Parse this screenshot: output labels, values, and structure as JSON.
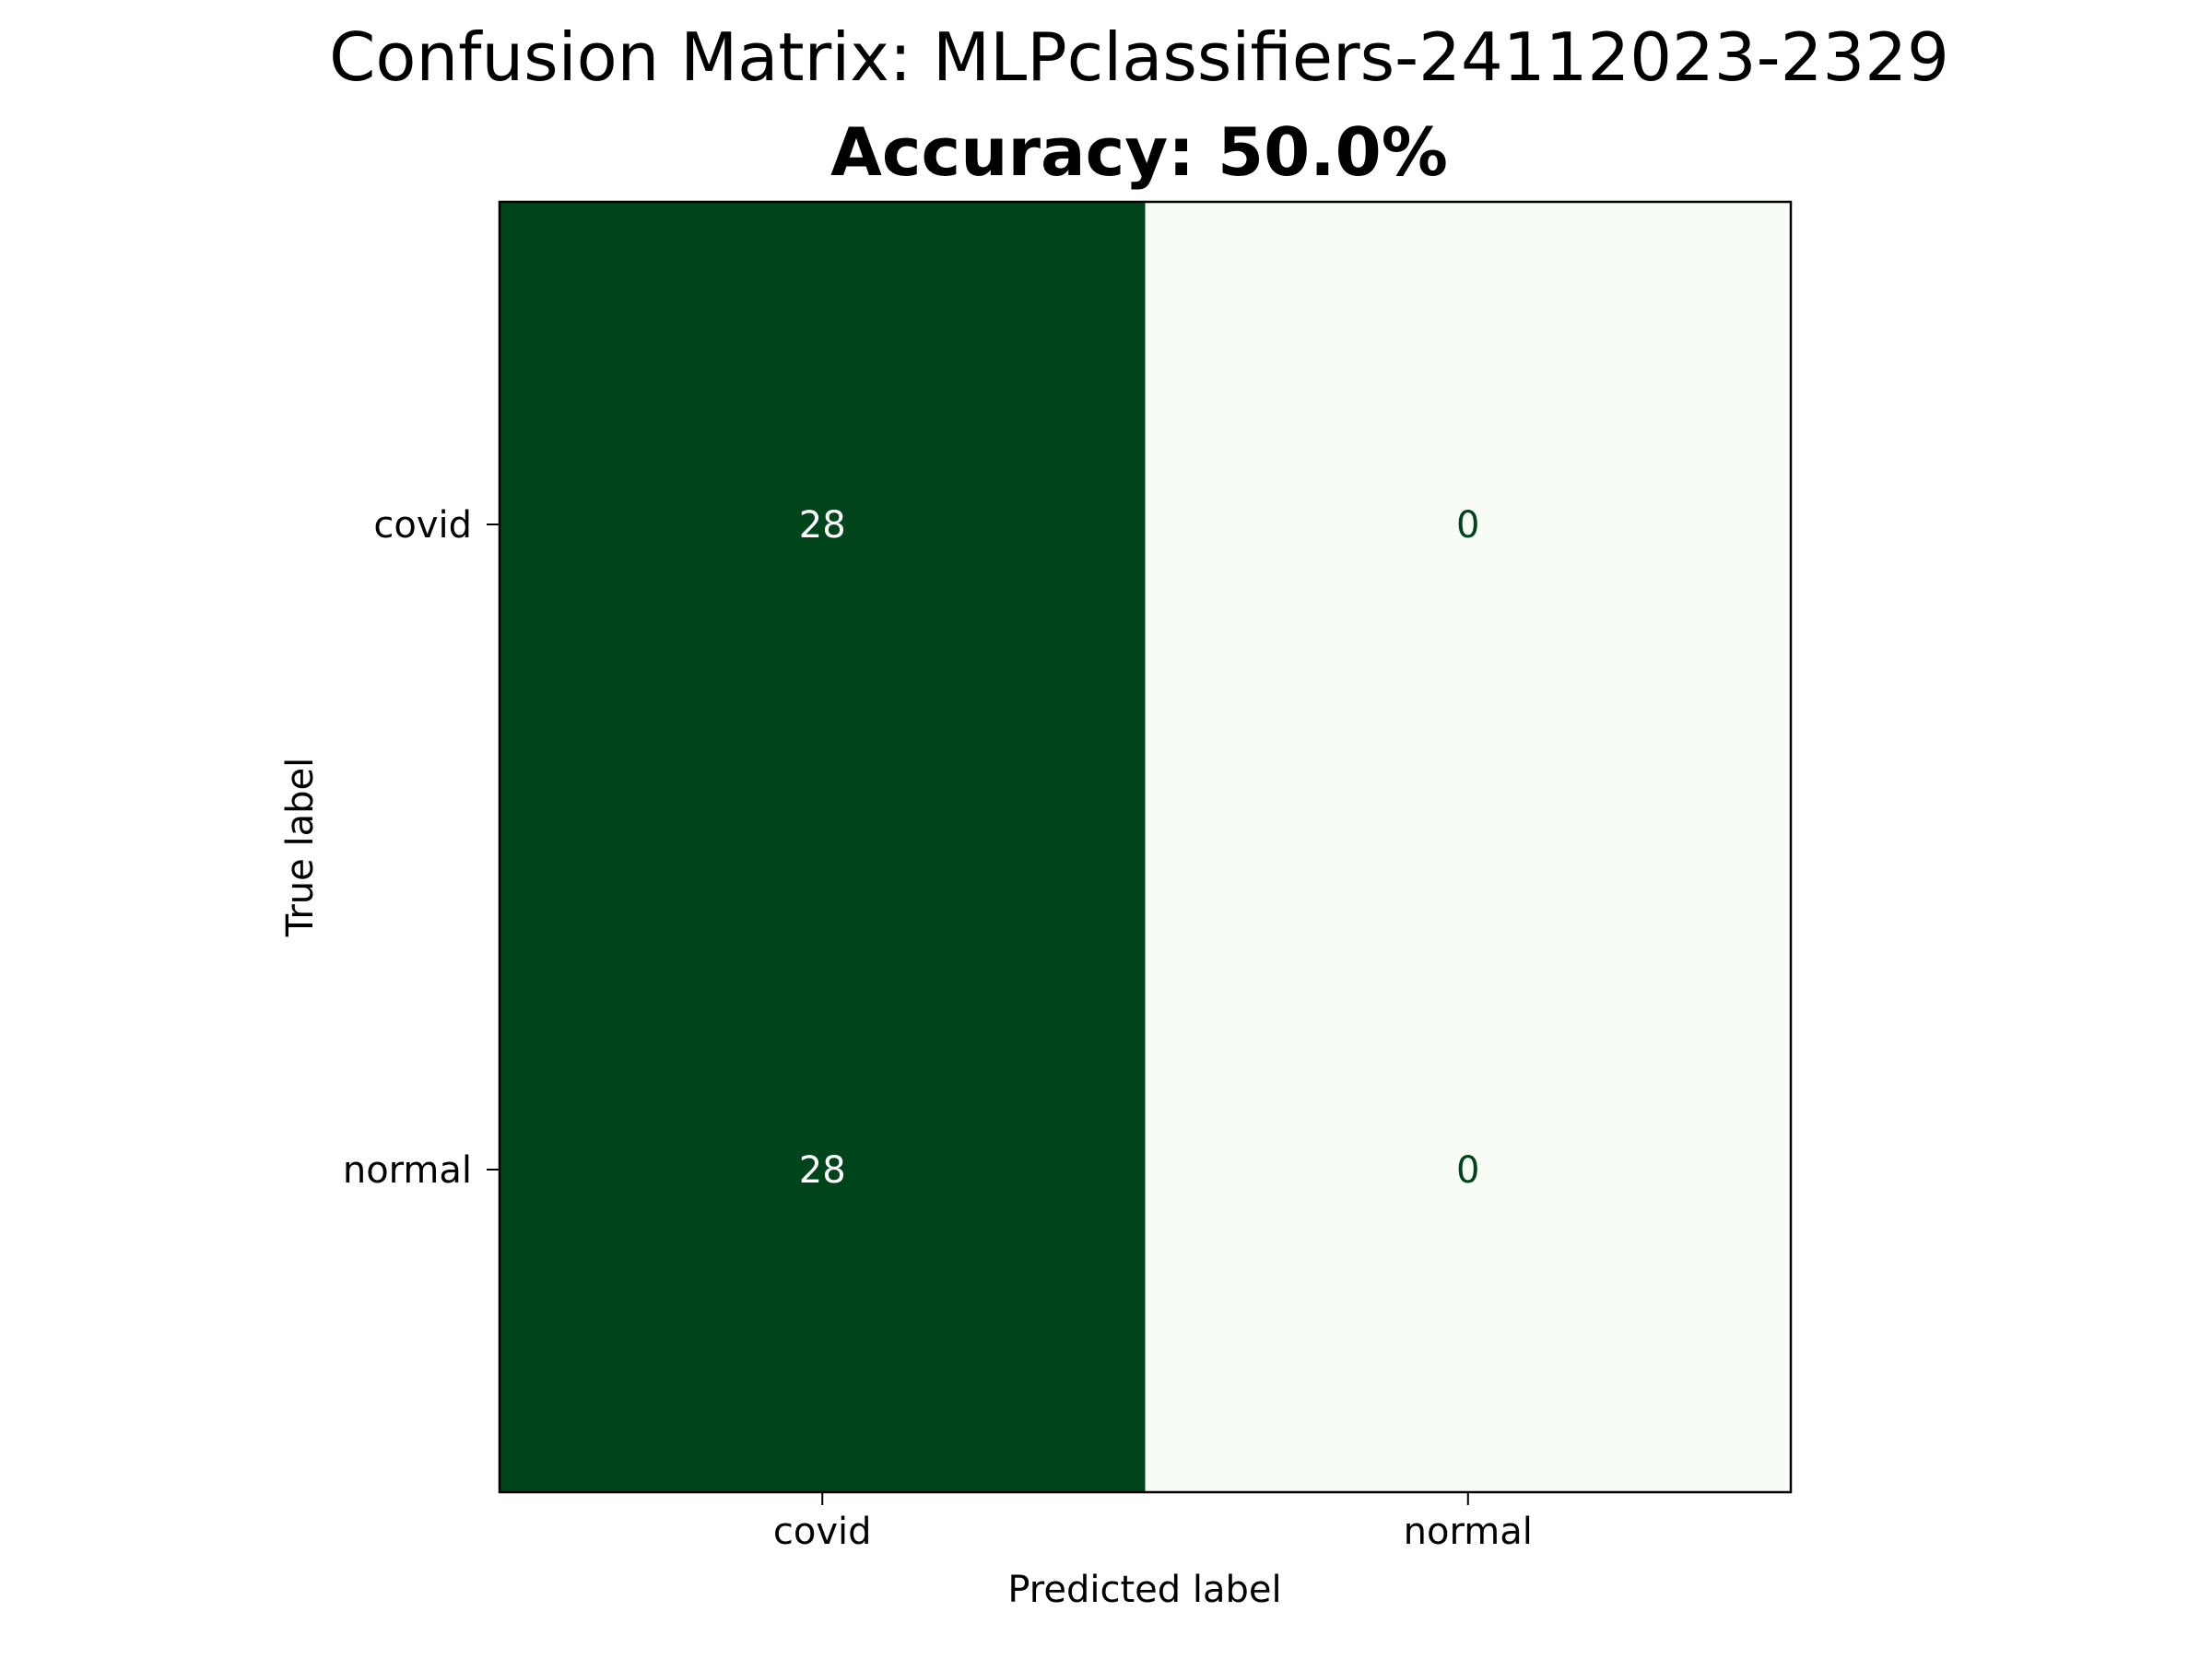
{
  "chart_data": {
    "type": "heatmap",
    "title": "Confusion Matrix: MLPclassifiers-24112023-2329",
    "subtitle": "Accuracy: 50.0%",
    "xlabel": "Predicted label",
    "ylabel": "True label",
    "x_categories": [
      "covid",
      "normal"
    ],
    "y_categories": [
      "covid",
      "normal"
    ],
    "matrix": [
      [
        28,
        0
      ],
      [
        28,
        0
      ]
    ],
    "value_range": [
      0,
      28
    ],
    "colormap": "Greens",
    "colors": {
      "high": "#00441b",
      "low": "#f7fcf5",
      "text_on_dark": "#ffffff",
      "text_on_light": "#00441b"
    },
    "grid": false,
    "colorbar": false
  }
}
